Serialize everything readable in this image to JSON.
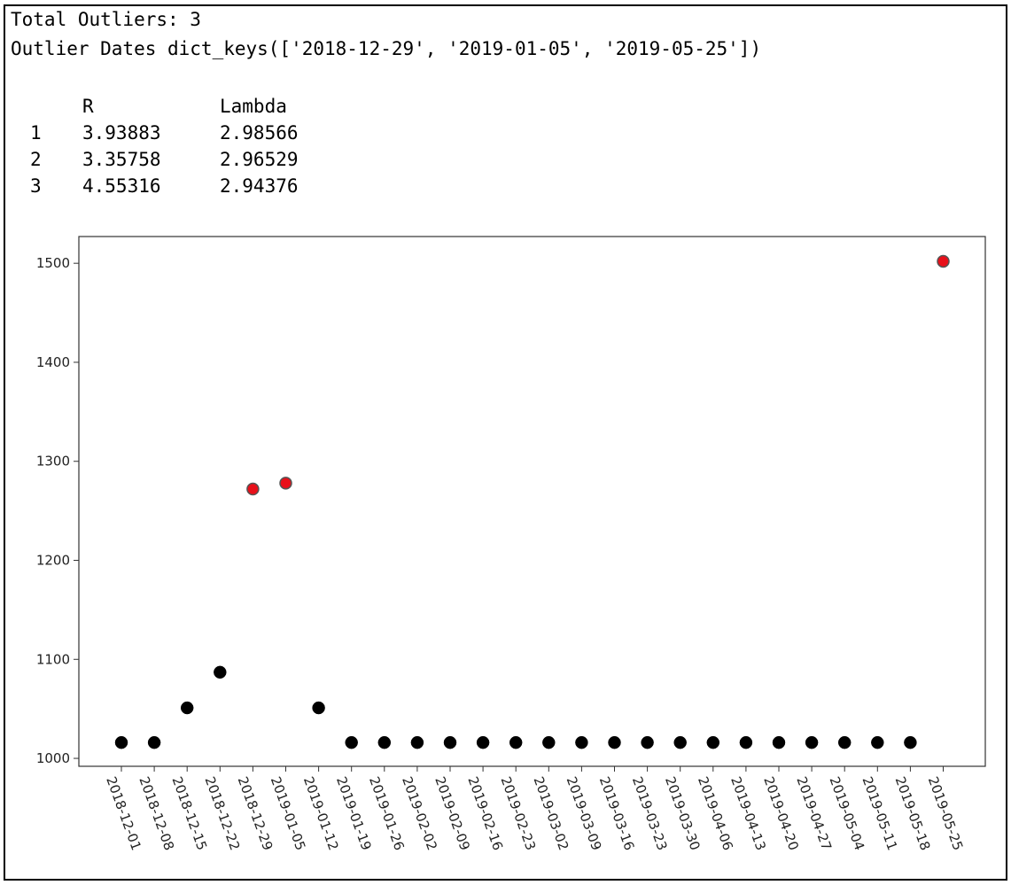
{
  "output": {
    "line1": "Total Outliers: 3",
    "line2": "Outlier Dates dict_keys(['2018-12-29', '2019-01-05', '2019-05-25'])",
    "table": {
      "headers": [
        "",
        "R",
        "Lambda"
      ],
      "rows": [
        [
          "1",
          "3.93883",
          "2.98566"
        ],
        [
          "2",
          "3.35758",
          "2.96529"
        ],
        [
          "3",
          "4.55316",
          "2.94376"
        ]
      ]
    }
  },
  "colors": {
    "normal": "#000000",
    "outlier": "#e8101a",
    "outlier_edge": "#555555"
  },
  "chart_data": {
    "type": "scatter",
    "ylim": [
      992,
      1527
    ],
    "yticks": [
      1000,
      1100,
      1200,
      1300,
      1400,
      1500
    ],
    "grid": false,
    "categories": [
      "2018-12-01",
      "2018-12-08",
      "2018-12-15",
      "2018-12-22",
      "2018-12-29",
      "2019-01-05",
      "2019-01-12",
      "2019-01-19",
      "2019-01-26",
      "2019-02-02",
      "2019-02-09",
      "2019-02-16",
      "2019-02-23",
      "2019-03-02",
      "2019-03-09",
      "2019-03-16",
      "2019-03-23",
      "2019-03-30",
      "2019-04-06",
      "2019-04-13",
      "2019-04-20",
      "2019-04-27",
      "2019-05-04",
      "2019-05-11",
      "2019-05-18",
      "2019-05-25"
    ],
    "values": [
      1016,
      1016,
      1051,
      1087,
      1272,
      1278,
      1051,
      1016,
      1016,
      1016,
      1016,
      1016,
      1016,
      1016,
      1016,
      1016,
      1016,
      1016,
      1016,
      1016,
      1016,
      1016,
      1016,
      1016,
      1016,
      1502
    ],
    "outliers": [
      "2018-12-29",
      "2019-01-05",
      "2019-05-25"
    ]
  }
}
